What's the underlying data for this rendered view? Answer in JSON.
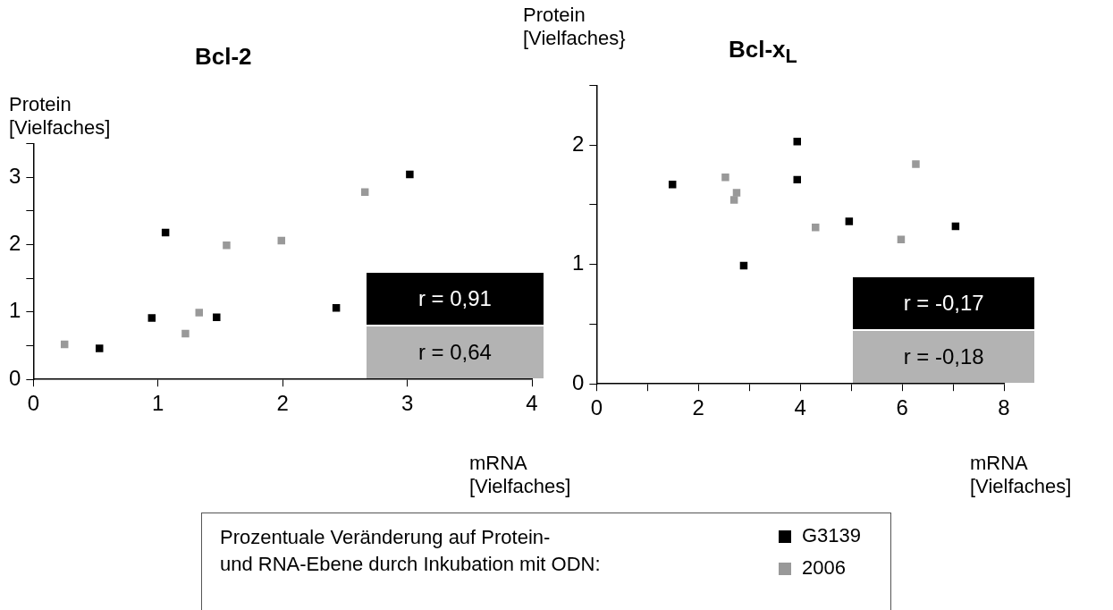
{
  "chart_data": [
    {
      "type": "scatter",
      "title": "Bcl-2",
      "ylabel": "Protein\n[Vielfaches]",
      "xlabel": "mRNA\n[Vielfaches]",
      "marker": "square",
      "grid": false,
      "legend": "bottom",
      "legend_title": "Prozentuale Veränderung auf Protein-\nund RNA-Ebene durch Inkubation mit ODN:",
      "xlim": [
        0,
        4
      ],
      "xticks": [
        0,
        1,
        2,
        3,
        4
      ],
      "ylim": [
        0,
        3.5
      ],
      "yticks": [
        0,
        {
          "value": 0.5,
          "label": null
        },
        1,
        {
          "value": 1.5,
          "label": null
        },
        2,
        {
          "value": 2.5,
          "label": null
        },
        3,
        {
          "value": 3.5,
          "label": null
        }
      ],
      "annotations": [
        "r = 0,91",
        "r = 0,64"
      ],
      "series": [
        {
          "name": "G3139",
          "color": "#000000",
          "x": [
            0.53,
            0.95,
            1.06,
            1.47,
            2.43,
            3.02
          ],
          "values": [
            0.46,
            0.91,
            2.18,
            0.92,
            1.06,
            3.04
          ]
        },
        {
          "name": "2006",
          "color": "#999999",
          "x": [
            0.25,
            1.22,
            1.33,
            1.55,
            1.99,
            2.66
          ],
          "values": [
            0.52,
            0.68,
            0.99,
            1.99,
            2.06,
            2.78
          ]
        }
      ]
    },
    {
      "type": "scatter",
      "title": "Bcl-x$_{L}$",
      "ylabel": "Protein\n[Vielfaches}",
      "xlabel": "mRNA\n[Vielfaches]",
      "marker": "square",
      "grid": false,
      "xlim": [
        0,
        8
      ],
      "xticks": [
        0,
        {
          "value": 1,
          "label": null
        },
        2,
        {
          "value": 3,
          "label": null
        },
        4,
        {
          "value": 5,
          "label": null
        },
        6,
        {
          "value": 7,
          "label": null
        },
        8
      ],
      "ylim": [
        0,
        2.5
      ],
      "yticks": [
        0,
        {
          "value": 0.5,
          "label": null
        },
        1,
        {
          "value": 1.5,
          "label": null
        },
        2,
        {
          "value": 2.5,
          "label": null
        }
      ],
      "annotations": [
        "r = -0,17",
        "r = -0,18"
      ],
      "series": [
        {
          "color": "#000000",
          "x": [
            1.49,
            2.89,
            3.94,
            3.94,
            4.96,
            7.05
          ],
          "values": [
            1.67,
            0.99,
            2.03,
            1.71,
            1.36,
            1.32
          ]
        },
        {
          "color": "#999999",
          "x": [
            2.53,
            2.75,
            2.7,
            4.3,
            5.98,
            6.27
          ],
          "values": [
            1.73,
            1.6,
            1.54,
            1.31,
            1.21,
            1.84
          ]
        }
      ]
    }
  ]
}
